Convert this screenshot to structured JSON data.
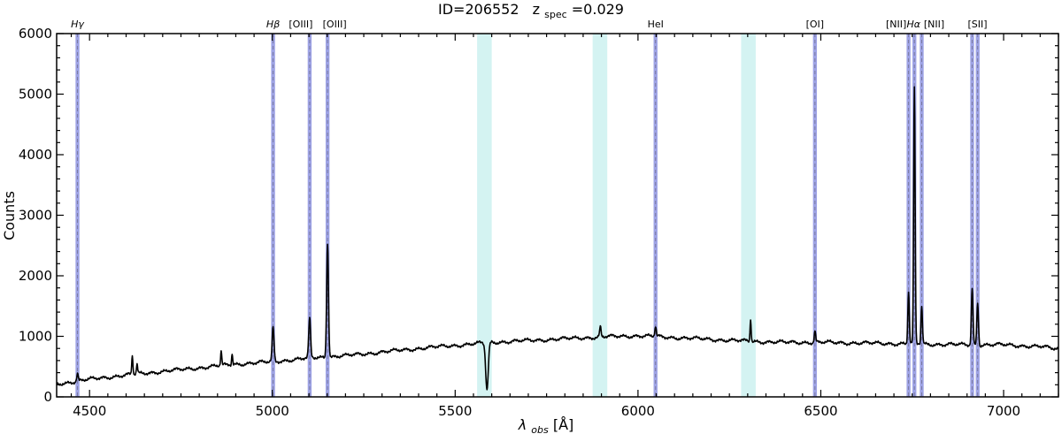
{
  "chart_data": {
    "type": "line",
    "title": {
      "main": "ID=206552",
      "z_symbol": "z",
      "z_subscript": "spec",
      "z_value": "=0.029"
    },
    "xlabel": {
      "symbol": "λ",
      "subscript": "obs",
      "unit": " [Å]"
    },
    "ylabel": "Counts",
    "xlim": [
      4410,
      7150
    ],
    "ylim": [
      0,
      6000
    ],
    "x_ticks": [
      4500,
      5000,
      5500,
      6000,
      6500,
      7000
    ],
    "x_tick_labels": [
      "4500",
      "5000",
      "5500",
      "6000",
      "6500",
      "7000"
    ],
    "y_ticks": [
      0,
      1000,
      2000,
      3000,
      4000,
      5000,
      6000
    ],
    "y_tick_labels": [
      "0",
      "1000",
      "2000",
      "3000",
      "4000",
      "5000",
      "6000"
    ],
    "grid": false,
    "colors": {
      "spectrum": "#000000",
      "emission_band": "#8d93e0",
      "emission_dash": "#7a7aa0",
      "sky_band": "#d4f3f2"
    },
    "emission_lines": [
      {
        "label": "Hγ",
        "x": 4467
      },
      {
        "label": "Hβ",
        "x": 5002
      },
      {
        "label": "[OIII]",
        "x": 5102
      },
      {
        "label": "[OIII]",
        "x": 5151
      },
      {
        "label": "HeI",
        "x": 6048
      },
      {
        "label": "[OI]",
        "x": 6484
      },
      {
        "label": "[NII]",
        "x": 6740
      },
      {
        "label": "Hα",
        "x": 6756
      },
      {
        "label": "[NII]",
        "x": 6776
      },
      {
        "label": "[SII]",
        "x": 6914
      },
      {
        "label": "[SII]",
        "x": 6929
      }
    ],
    "sky_bands": [
      [
        5560,
        5600
      ],
      [
        5876,
        5916
      ],
      [
        6282,
        6322
      ]
    ],
    "spectrum": {
      "continuum": [
        [
          4410,
          210
        ],
        [
          4500,
          290
        ],
        [
          4600,
          360
        ],
        [
          4700,
          420
        ],
        [
          4800,
          480
        ],
        [
          4900,
          540
        ],
        [
          5000,
          580
        ],
        [
          5100,
          640
        ],
        [
          5200,
          680
        ],
        [
          5300,
          740
        ],
        [
          5400,
          800
        ],
        [
          5500,
          850
        ],
        [
          5600,
          900
        ],
        [
          5700,
          930
        ],
        [
          5800,
          960
        ],
        [
          5900,
          990
        ],
        [
          6000,
          1010
        ],
        [
          6100,
          980
        ],
        [
          6200,
          950
        ],
        [
          6300,
          920
        ],
        [
          6400,
          900
        ],
        [
          6500,
          900
        ],
        [
          6600,
          890
        ],
        [
          6700,
          880
        ],
        [
          6800,
          870
        ],
        [
          6900,
          860
        ],
        [
          7000,
          860
        ],
        [
          7100,
          830
        ],
        [
          7150,
          790
        ]
      ],
      "features": [
        {
          "x": 4467,
          "height": 120,
          "width": 2
        },
        {
          "x": 4617,
          "height": 320,
          "width": 1.5
        },
        {
          "x": 4630,
          "height": 160,
          "width": 1.5
        },
        {
          "x": 4860,
          "height": 240,
          "width": 1.5
        },
        {
          "x": 4890,
          "height": 180,
          "width": 1.5
        },
        {
          "x": 5002,
          "height": 560,
          "width": 2.5
        },
        {
          "x": 5102,
          "height": 640,
          "width": 2.5
        },
        {
          "x": 5151,
          "height": 1890,
          "width": 2.5
        },
        {
          "x": 5587,
          "height": -780,
          "width": 3.5
        },
        {
          "x": 5897,
          "height": 160,
          "width": 2
        },
        {
          "x": 6048,
          "height": 160,
          "width": 2
        },
        {
          "x": 6308,
          "height": 370,
          "width": 1.5
        },
        {
          "x": 6484,
          "height": 180,
          "width": 2
        },
        {
          "x": 6740,
          "height": 850,
          "width": 2
        },
        {
          "x": 6756,
          "height": 4220,
          "width": 2
        },
        {
          "x": 6776,
          "height": 620,
          "width": 2
        },
        {
          "x": 6914,
          "height": 920,
          "width": 2.2
        },
        {
          "x": 6929,
          "height": 700,
          "width": 2.2
        }
      ]
    }
  }
}
